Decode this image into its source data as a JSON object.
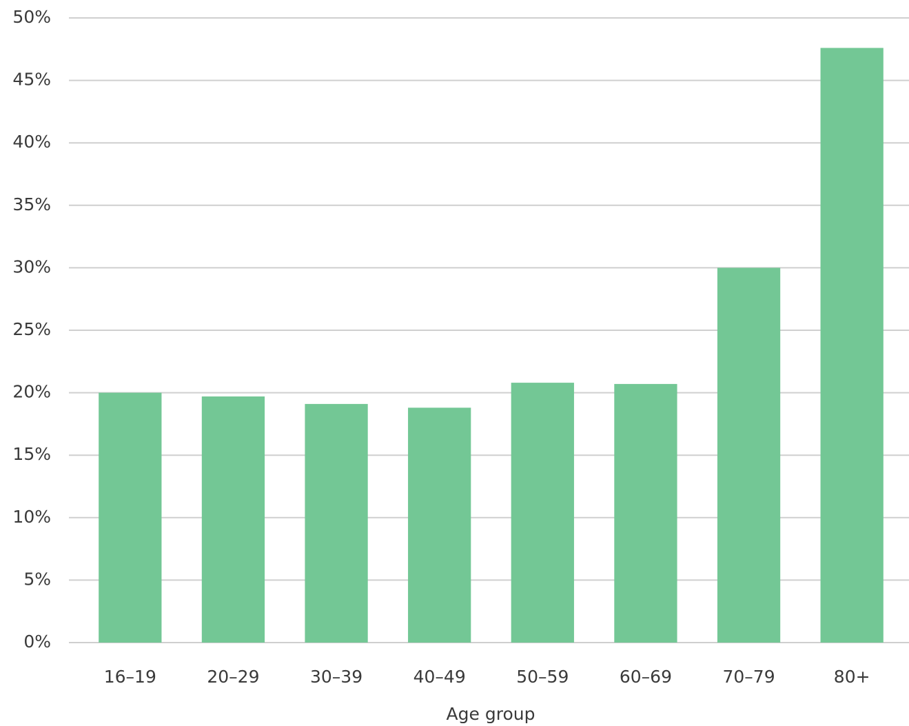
{
  "chart_data": {
    "type": "bar",
    "x_label": "Age group",
    "categories": [
      "16–19",
      "20–29",
      "30–39",
      "40–49",
      "50–59",
      "60–69",
      "70–79",
      "80+"
    ],
    "values": [
      20.0,
      19.7,
      19.1,
      18.8,
      20.8,
      20.7,
      30.0,
      47.6
    ],
    "color": "#73c795",
    "ylim": [
      0,
      50
    ],
    "yticks": [
      {
        "value": 0,
        "label": "0%"
      },
      {
        "value": 5,
        "label": "5%"
      },
      {
        "value": 10,
        "label": "10%"
      },
      {
        "value": 15,
        "label": "15%"
      },
      {
        "value": 20,
        "label": "20%"
      },
      {
        "value": 25,
        "label": "25%"
      },
      {
        "value": 30,
        "label": "30%"
      },
      {
        "value": 35,
        "label": "35%"
      },
      {
        "value": 40,
        "label": "40%"
      },
      {
        "value": 45,
        "label": "45%"
      },
      {
        "value": 50,
        "label": "50%"
      }
    ],
    "grid": true
  }
}
